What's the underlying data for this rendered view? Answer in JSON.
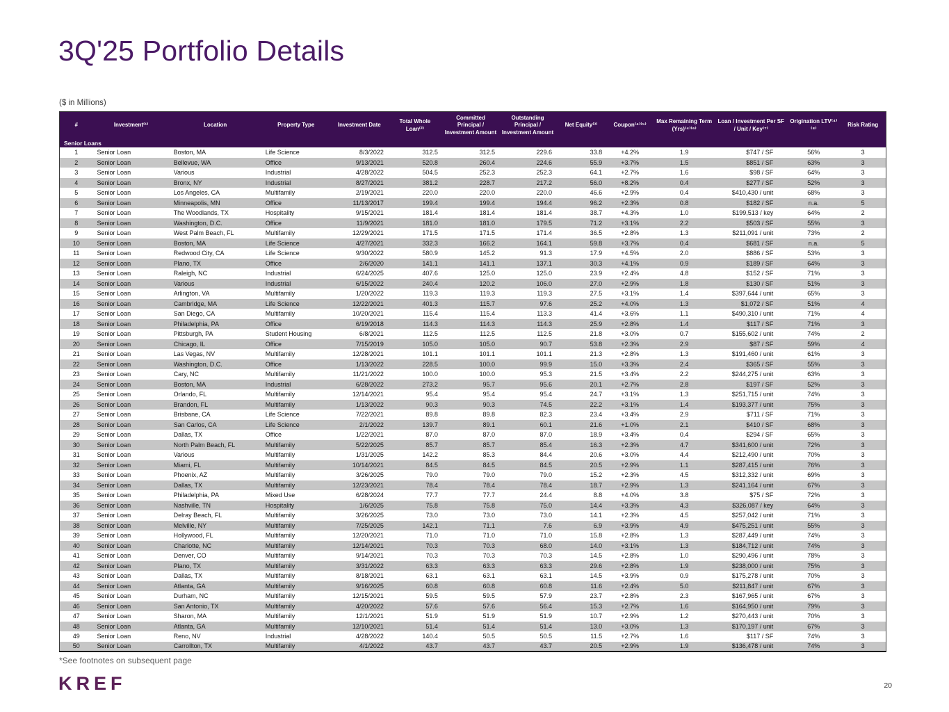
{
  "title": "3Q'25 Portfolio Details",
  "units_note": "($ in Millions)",
  "footnote": "*See footnotes on subsequent page",
  "logo_text": "KREF",
  "page_number": "20",
  "colors": {
    "header_purple": "#3b0f52",
    "title_purple": "#4b1a66",
    "row_gray": "#c6c6c6",
    "logo_plum": "#5c2158"
  },
  "table": {
    "section_label": "Senior Loans",
    "columns": [
      "#",
      "Investment⁽¹⁾",
      "Location",
      "Property Type",
      "Investment Date",
      "Total Whole Loan⁽²⁾",
      "Committed Principal / Investment Amount",
      "Outstanding Principal / Investment Amount",
      "Net Equity⁽³⁾",
      "Coupon⁽⁴⁾⁽⁵⁾",
      "Max Remaining Term (Yrs)⁽⁴⁾⁽⁶⁾",
      "Loan / Investment Per SF / Unit / Key⁽⁷⁾",
      "Origination LTV⁽⁴⁾⁽⁸⁾",
      "Risk Rating"
    ],
    "rows": [
      [
        "1",
        "Senior Loan",
        "Boston, MA",
        "Life Science",
        "8/3/2022",
        "312.5",
        "312.5",
        "229.6",
        "33.8",
        "+4.2%",
        "1.9",
        "$747 / SF",
        "56%",
        "3"
      ],
      [
        "2",
        "Senior Loan",
        "Bellevue, WA",
        "Office",
        "9/13/2021",
        "520.8",
        "260.4",
        "224.6",
        "55.9",
        "+3.7%",
        "1.5",
        "$851 / SF",
        "63%",
        "3"
      ],
      [
        "3",
        "Senior Loan",
        "Various",
        "Industrial",
        "4/28/2022",
        "504.5",
        "252.3",
        "252.3",
        "64.1",
        "+2.7%",
        "1.6",
        "$98 / SF",
        "64%",
        "3"
      ],
      [
        "4",
        "Senior Loan",
        "Bronx, NY",
        "Industrial",
        "8/27/2021",
        "381.2",
        "228.7",
        "217.2",
        "56.0",
        "+8.2%",
        "0.4",
        "$277 / SF",
        "52%",
        "3"
      ],
      [
        "5",
        "Senior Loan",
        "Los Angeles, CA",
        "Multifamily",
        "2/19/2021",
        "220.0",
        "220.0",
        "220.0",
        "46.6",
        "+2.9%",
        "0.4",
        "$410,430 / unit",
        "68%",
        "3"
      ],
      [
        "6",
        "Senior Loan",
        "Minneapolis, MN",
        "Office",
        "11/13/2017",
        "199.4",
        "199.4",
        "194.4",
        "96.2",
        "+2.3%",
        "0.8",
        "$182 / SF",
        "n.a.",
        "5"
      ],
      [
        "7",
        "Senior Loan",
        "The Woodlands, TX",
        "Hospitality",
        "9/15/2021",
        "181.4",
        "181.4",
        "181.4",
        "38.7",
        "+4.3%",
        "1.0",
        "$199,513 / key",
        "64%",
        "2"
      ],
      [
        "8",
        "Senior Loan",
        "Washington, D.C.",
        "Office",
        "11/9/2021",
        "181.0",
        "181.0",
        "179.5",
        "71.2",
        "+3.1%",
        "2.2",
        "$503 / SF",
        "55%",
        "3"
      ],
      [
        "9",
        "Senior Loan",
        "West Palm Beach, FL",
        "Multifamily",
        "12/29/2021",
        "171.5",
        "171.5",
        "171.4",
        "36.5",
        "+2.8%",
        "1.3",
        "$211,091 / unit",
        "73%",
        "2"
      ],
      [
        "10",
        "Senior Loan",
        "Boston, MA",
        "Life Science",
        "4/27/2021",
        "332.3",
        "166.2",
        "164.1",
        "59.8",
        "+3.7%",
        "0.4",
        "$681 / SF",
        "n.a.",
        "5"
      ],
      [
        "11",
        "Senior Loan",
        "Redwood City, CA",
        "Life Science",
        "9/30/2022",
        "580.9",
        "145.2",
        "91.3",
        "17.9",
        "+4.5%",
        "2.0",
        "$886 / SF",
        "53%",
        "3"
      ],
      [
        "12",
        "Senior Loan",
        "Plano, TX",
        "Office",
        "2/6/2020",
        "141.1",
        "141.1",
        "137.1",
        "30.3",
        "+4.1%",
        "0.9",
        "$189 / SF",
        "64%",
        "3"
      ],
      [
        "13",
        "Senior Loan",
        "Raleigh, NC",
        "Industrial",
        "6/24/2025",
        "407.6",
        "125.0",
        "125.0",
        "23.9",
        "+2.4%",
        "4.8",
        "$152 / SF",
        "71%",
        "3"
      ],
      [
        "14",
        "Senior Loan",
        "Various",
        "Industrial",
        "6/15/2022",
        "240.4",
        "120.2",
        "106.0",
        "27.0",
        "+2.9%",
        "1.8",
        "$130 / SF",
        "51%",
        "3"
      ],
      [
        "15",
        "Senior Loan",
        "Arlington, VA",
        "Multifamily",
        "1/20/2022",
        "119.3",
        "119.3",
        "119.3",
        "27.5",
        "+3.1%",
        "1.4",
        "$397,644 / unit",
        "65%",
        "3"
      ],
      [
        "16",
        "Senior Loan",
        "Cambridge, MA",
        "Life Science",
        "12/22/2021",
        "401.3",
        "115.7",
        "97.6",
        "25.2",
        "+4.0%",
        "1.3",
        "$1,072 / SF",
        "51%",
        "4"
      ],
      [
        "17",
        "Senior Loan",
        "San Diego, CA",
        "Multifamily",
        "10/20/2021",
        "115.4",
        "115.4",
        "113.3",
        "41.4",
        "+3.6%",
        "1.1",
        "$490,310 / unit",
        "71%",
        "4"
      ],
      [
        "18",
        "Senior Loan",
        "Philadelphia, PA",
        "Office",
        "6/19/2018",
        "114.3",
        "114.3",
        "114.3",
        "25.9",
        "+2.8%",
        "1.4",
        "$117 / SF",
        "71%",
        "3"
      ],
      [
        "19",
        "Senior Loan",
        "Pittsburgh, PA",
        "Student Housing",
        "6/8/2021",
        "112.5",
        "112.5",
        "112.5",
        "21.8",
        "+3.0%",
        "0.7",
        "$155,602 / unit",
        "74%",
        "2"
      ],
      [
        "20",
        "Senior Loan",
        "Chicago, IL",
        "Office",
        "7/15/2019",
        "105.0",
        "105.0",
        "90.7",
        "53.8",
        "+2.3%",
        "2.9",
        "$87 / SF",
        "59%",
        "4"
      ],
      [
        "21",
        "Senior Loan",
        "Las Vegas, NV",
        "Multifamily",
        "12/28/2021",
        "101.1",
        "101.1",
        "101.1",
        "21.3",
        "+2.8%",
        "1.3",
        "$191,460 / unit",
        "61%",
        "3"
      ],
      [
        "22",
        "Senior Loan",
        "Washington, D.C.",
        "Office",
        "1/13/2022",
        "228.5",
        "100.0",
        "99.9",
        "15.0",
        "+3.3%",
        "2.4",
        "$365 / SF",
        "55%",
        "3"
      ],
      [
        "23",
        "Senior Loan",
        "Cary, NC",
        "Multifamily",
        "11/21/2022",
        "100.0",
        "100.0",
        "95.3",
        "21.5",
        "+3.4%",
        "2.2",
        "$244,275 / unit",
        "63%",
        "3"
      ],
      [
        "24",
        "Senior Loan",
        "Boston, MA",
        "Industrial",
        "6/28/2022",
        "273.2",
        "95.7",
        "95.6",
        "20.1",
        "+2.7%",
        "2.8",
        "$197 / SF",
        "52%",
        "3"
      ],
      [
        "25",
        "Senior Loan",
        "Orlando, FL",
        "Multifamily",
        "12/14/2021",
        "95.4",
        "95.4",
        "95.4",
        "24.7",
        "+3.1%",
        "1.3",
        "$251,715 / unit",
        "74%",
        "3"
      ],
      [
        "26",
        "Senior Loan",
        "Brandon, FL",
        "Multifamily",
        "1/13/2022",
        "90.3",
        "90.3",
        "74.5",
        "22.2",
        "+3.1%",
        "1.4",
        "$193,377 / unit",
        "75%",
        "3"
      ],
      [
        "27",
        "Senior Loan",
        "Brisbane, CA",
        "Life Science",
        "7/22/2021",
        "89.8",
        "89.8",
        "82.3",
        "23.4",
        "+3.4%",
        "2.9",
        "$711 / SF",
        "71%",
        "3"
      ],
      [
        "28",
        "Senior Loan",
        "San Carlos, CA",
        "Life Science",
        "2/1/2022",
        "139.7",
        "89.1",
        "60.1",
        "21.6",
        "+1.0%",
        "2.1",
        "$410 / SF",
        "68%",
        "3"
      ],
      [
        "29",
        "Senior Loan",
        "Dallas, TX",
        "Office",
        "1/22/2021",
        "87.0",
        "87.0",
        "87.0",
        "18.9",
        "+3.4%",
        "0.4",
        "$294 / SF",
        "65%",
        "3"
      ],
      [
        "30",
        "Senior Loan",
        "North Palm Beach, FL",
        "Multifamily",
        "5/22/2025",
        "85.7",
        "85.7",
        "85.4",
        "16.3",
        "+2.3%",
        "4.7",
        "$341,600 / unit",
        "72%",
        "3"
      ],
      [
        "31",
        "Senior Loan",
        "Various",
        "Multifamily",
        "1/31/2025",
        "142.2",
        "85.3",
        "84.4",
        "20.6",
        "+3.0%",
        "4.4",
        "$212,490 / unit",
        "70%",
        "3"
      ],
      [
        "32",
        "Senior Loan",
        "Miami, FL",
        "Multifamily",
        "10/14/2021",
        "84.5",
        "84.5",
        "84.5",
        "20.5",
        "+2.9%",
        "1.1",
        "$287,415 / unit",
        "76%",
        "3"
      ],
      [
        "33",
        "Senior Loan",
        "Phoenix, AZ",
        "Multifamily",
        "3/26/2025",
        "79.0",
        "79.0",
        "79.0",
        "15.2",
        "+2.3%",
        "4.5",
        "$312,332 / unit",
        "69%",
        "3"
      ],
      [
        "34",
        "Senior Loan",
        "Dallas, TX",
        "Multifamily",
        "12/23/2021",
        "78.4",
        "78.4",
        "78.4",
        "18.7",
        "+2.9%",
        "1.3",
        "$241,164 / unit",
        "67%",
        "3"
      ],
      [
        "35",
        "Senior Loan",
        "Philadelphia, PA",
        "Mixed Use",
        "6/28/2024",
        "77.7",
        "77.7",
        "24.4",
        "8.8",
        "+4.0%",
        "3.8",
        "$75 / SF",
        "72%",
        "3"
      ],
      [
        "36",
        "Senior Loan",
        "Nashville, TN",
        "Hospitality",
        "1/6/2025",
        "75.8",
        "75.8",
        "75.0",
        "14.4",
        "+3.3%",
        "4.3",
        "$326,087 / key",
        "64%",
        "3"
      ],
      [
        "37",
        "Senior Loan",
        "Delray Beach, FL",
        "Multifamily",
        "3/26/2025",
        "73.0",
        "73.0",
        "73.0",
        "14.1",
        "+2.3%",
        "4.5",
        "$257,042 / unit",
        "71%",
        "3"
      ],
      [
        "38",
        "Senior Loan",
        "Melville, NY",
        "Multifamily",
        "7/25/2025",
        "142.1",
        "71.1",
        "7.6",
        "6.9",
        "+3.9%",
        "4.9",
        "$475,251 / unit",
        "55%",
        "3"
      ],
      [
        "39",
        "Senior Loan",
        "Hollywood, FL",
        "Multifamily",
        "12/20/2021",
        "71.0",
        "71.0",
        "71.0",
        "15.8",
        "+2.8%",
        "1.3",
        "$287,449 / unit",
        "74%",
        "3"
      ],
      [
        "40",
        "Senior Loan",
        "Charlotte, NC",
        "Multifamily",
        "12/14/2021",
        "70.3",
        "70.3",
        "68.0",
        "14.0",
        "+3.1%",
        "1.3",
        "$184,712 / unit",
        "74%",
        "3"
      ],
      [
        "41",
        "Senior Loan",
        "Denver, CO",
        "Multifamily",
        "9/14/2021",
        "70.3",
        "70.3",
        "70.3",
        "14.5",
        "+2.8%",
        "1.0",
        "$290,496 / unit",
        "78%",
        "3"
      ],
      [
        "42",
        "Senior Loan",
        "Plano, TX",
        "Multifamily",
        "3/31/2022",
        "63.3",
        "63.3",
        "63.3",
        "29.6",
        "+2.8%",
        "1.9",
        "$238,000 / unit",
        "75%",
        "3"
      ],
      [
        "43",
        "Senior Loan",
        "Dallas, TX",
        "Multifamily",
        "8/18/2021",
        "63.1",
        "63.1",
        "63.1",
        "14.5",
        "+3.9%",
        "0.9",
        "$175,278 / unit",
        "70%",
        "3"
      ],
      [
        "44",
        "Senior Loan",
        "Atlanta, GA",
        "Multifamily",
        "9/16/2025",
        "60.8",
        "60.8",
        "60.8",
        "11.6",
        "+2.4%",
        "5.0",
        "$211,847 / unit",
        "67%",
        "3"
      ],
      [
        "45",
        "Senior Loan",
        "Durham, NC",
        "Multifamily",
        "12/15/2021",
        "59.5",
        "59.5",
        "57.9",
        "23.7",
        "+2.8%",
        "2.3",
        "$167,965 / unit",
        "67%",
        "3"
      ],
      [
        "46",
        "Senior Loan",
        "San Antonio, TX",
        "Multifamily",
        "4/20/2022",
        "57.6",
        "57.6",
        "56.4",
        "15.3",
        "+2.7%",
        "1.6",
        "$164,950 / unit",
        "79%",
        "3"
      ],
      [
        "47",
        "Senior Loan",
        "Sharon, MA",
        "Multifamily",
        "12/1/2021",
        "51.9",
        "51.9",
        "51.9",
        "10.7",
        "+2.9%",
        "1.2",
        "$270,443 / unit",
        "70%",
        "3"
      ],
      [
        "48",
        "Senior Loan",
        "Atlanta, GA",
        "Multifamily",
        "12/10/2021",
        "51.4",
        "51.4",
        "51.4",
        "13.0",
        "+3.0%",
        "1.3",
        "$170,197 / unit",
        "67%",
        "3"
      ],
      [
        "49",
        "Senior Loan",
        "Reno, NV",
        "Industrial",
        "4/28/2022",
        "140.4",
        "50.5",
        "50.5",
        "11.5",
        "+2.7%",
        "1.6",
        "$117 / SF",
        "74%",
        "3"
      ],
      [
        "50",
        "Senior Loan",
        "Carrollton, TX",
        "Multifamily",
        "4/1/2022",
        "43.7",
        "43.7",
        "43.7",
        "20.5",
        "+2.9%",
        "1.9",
        "$136,478 / unit",
        "74%",
        "3"
      ]
    ]
  }
}
